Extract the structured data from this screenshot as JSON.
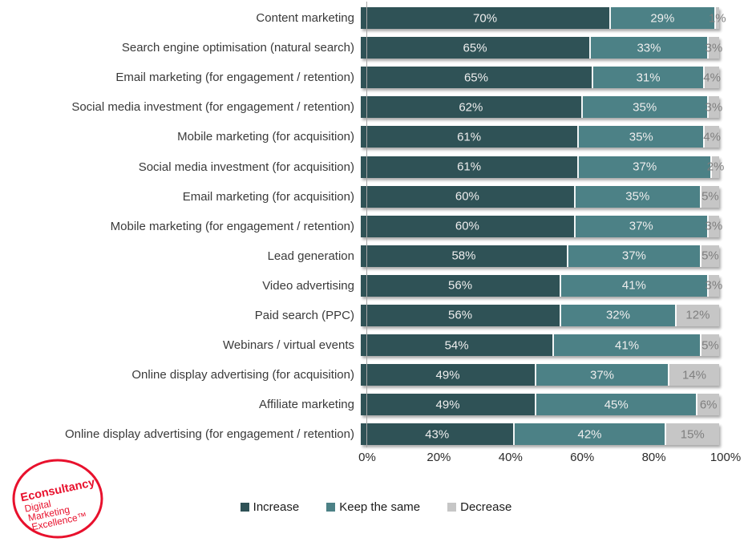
{
  "chart_data": {
    "type": "bar",
    "orientation": "horizontal-stacked",
    "title": "",
    "xlabel": "",
    "ylabel": "",
    "value_suffix": "%",
    "x_axis": {
      "range": [
        0,
        100
      ],
      "ticks": [
        "0%",
        "20%",
        "40%",
        "60%",
        "80%",
        "100%"
      ],
      "grid": false
    },
    "legend_position": "bottom",
    "categories": [
      "Content marketing",
      "Search engine optimisation (natural search)",
      "Email marketing (for engagement / retention)",
      "Social media investment (for engagement / retention)",
      "Mobile marketing (for acquisition)",
      "Social media investment (for acquisition)",
      "Email marketing (for acquisition)",
      "Mobile marketing (for engagement / retention)",
      "Lead generation",
      "Video advertising",
      "Paid search (PPC)",
      "Webinars / virtual events",
      "Online display advertising (for acquisition)",
      "Affiliate marketing",
      "Online display advertising (for engagement / retention)"
    ],
    "series": [
      {
        "name": "Increase",
        "color": "#2f5256",
        "values": [
          70,
          65,
          65,
          62,
          61,
          61,
          60,
          60,
          58,
          56,
          56,
          54,
          49,
          49,
          43
        ]
      },
      {
        "name": "Keep the same",
        "color": "#4c8186",
        "values": [
          29,
          33,
          31,
          35,
          35,
          37,
          35,
          37,
          37,
          41,
          32,
          41,
          37,
          45,
          42
        ]
      },
      {
        "name": "Decrease",
        "color": "#c6c6c6",
        "values": [
          1,
          3,
          4,
          3,
          4,
          2,
          5,
          3,
          5,
          3,
          12,
          5,
          14,
          6,
          15
        ]
      }
    ]
  },
  "colors": {
    "increase": "#2f5256",
    "keep_the_same": "#4c8186",
    "decrease": "#c6c6c6",
    "in_bar_label": "#eeeeee",
    "decrease_label": "#7f7f7f",
    "logo_red": "#e8112d"
  },
  "logo": {
    "line1": "Econsultancy",
    "line2": "Digital",
    "line3": "Marketing",
    "line4": "Excellence™"
  }
}
